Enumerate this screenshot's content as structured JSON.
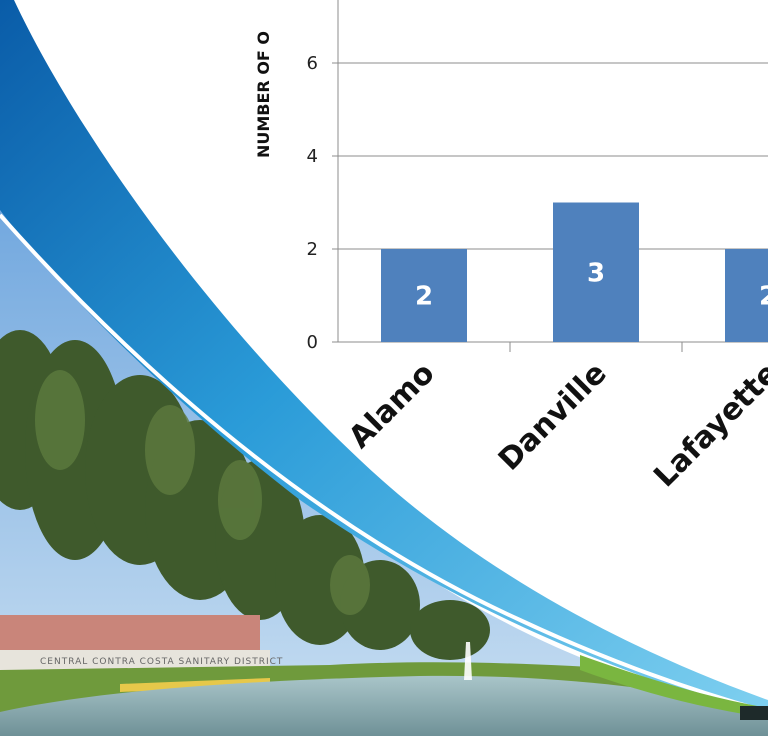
{
  "chart_data": {
    "type": "bar",
    "categories": [
      "Alamo",
      "Danville",
      "Lafayette"
    ],
    "values": [
      2,
      3,
      2
    ],
    "data_labels": [
      "2",
      "3",
      "2"
    ],
    "ylabel": "NUMBER OF O",
    "xlabel": "",
    "title": "",
    "ylim": [
      0,
      7.6
    ],
    "yticks": [
      "0",
      "2",
      "4",
      "6"
    ],
    "grid": true,
    "legend": "none",
    "bar_color": "#4f81bd"
  },
  "background": {
    "sign_text": "CENTRAL CONTRA COSTA SANITARY DISTRICT",
    "swoosh_color": "#2a8fd0",
    "green_accent": "#7ab640"
  }
}
